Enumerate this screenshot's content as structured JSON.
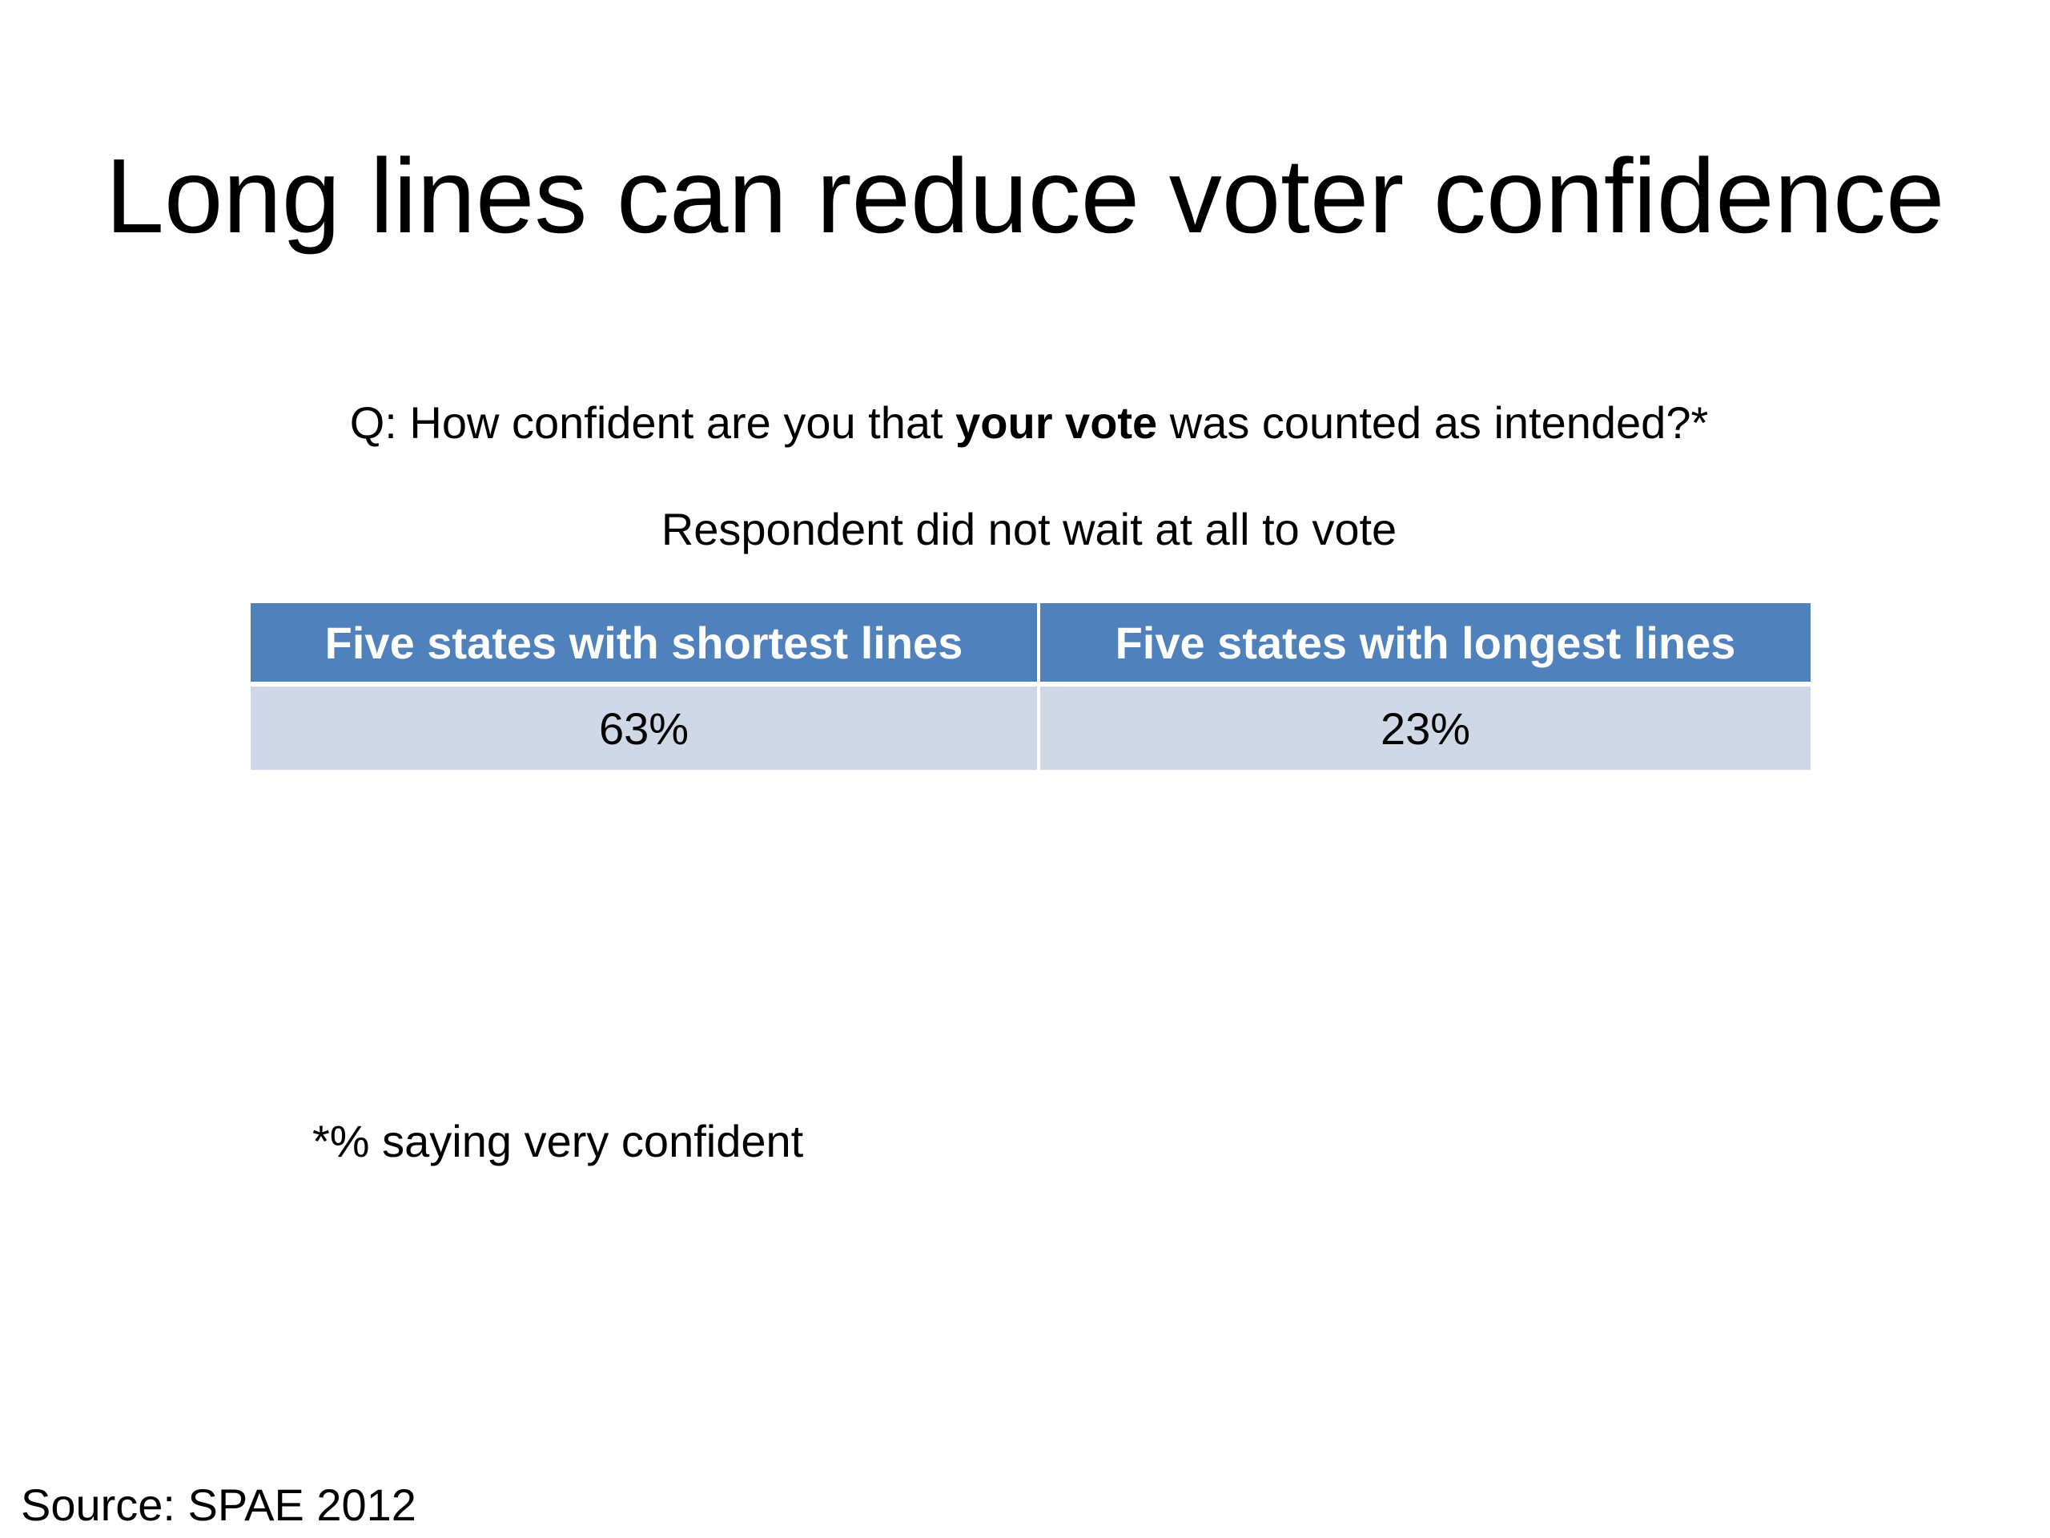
{
  "slide": {
    "title": "Long lines can reduce voter confidence",
    "question": {
      "prefix": "Q:  How confident are you that ",
      "emphasis": "your vote",
      "suffix": " was counted as intended?*"
    },
    "subtitle": "Respondent did not wait at all to vote",
    "table": {
      "headers": [
        "Five states with shortest lines",
        "Five states with longest lines"
      ],
      "values": [
        "63%",
        "23%"
      ],
      "header_color": "#4f81bd",
      "cell_color": "#d0d8e8"
    },
    "footnote": "*% saying very confident",
    "source": "Source:  SPAE 2012"
  }
}
